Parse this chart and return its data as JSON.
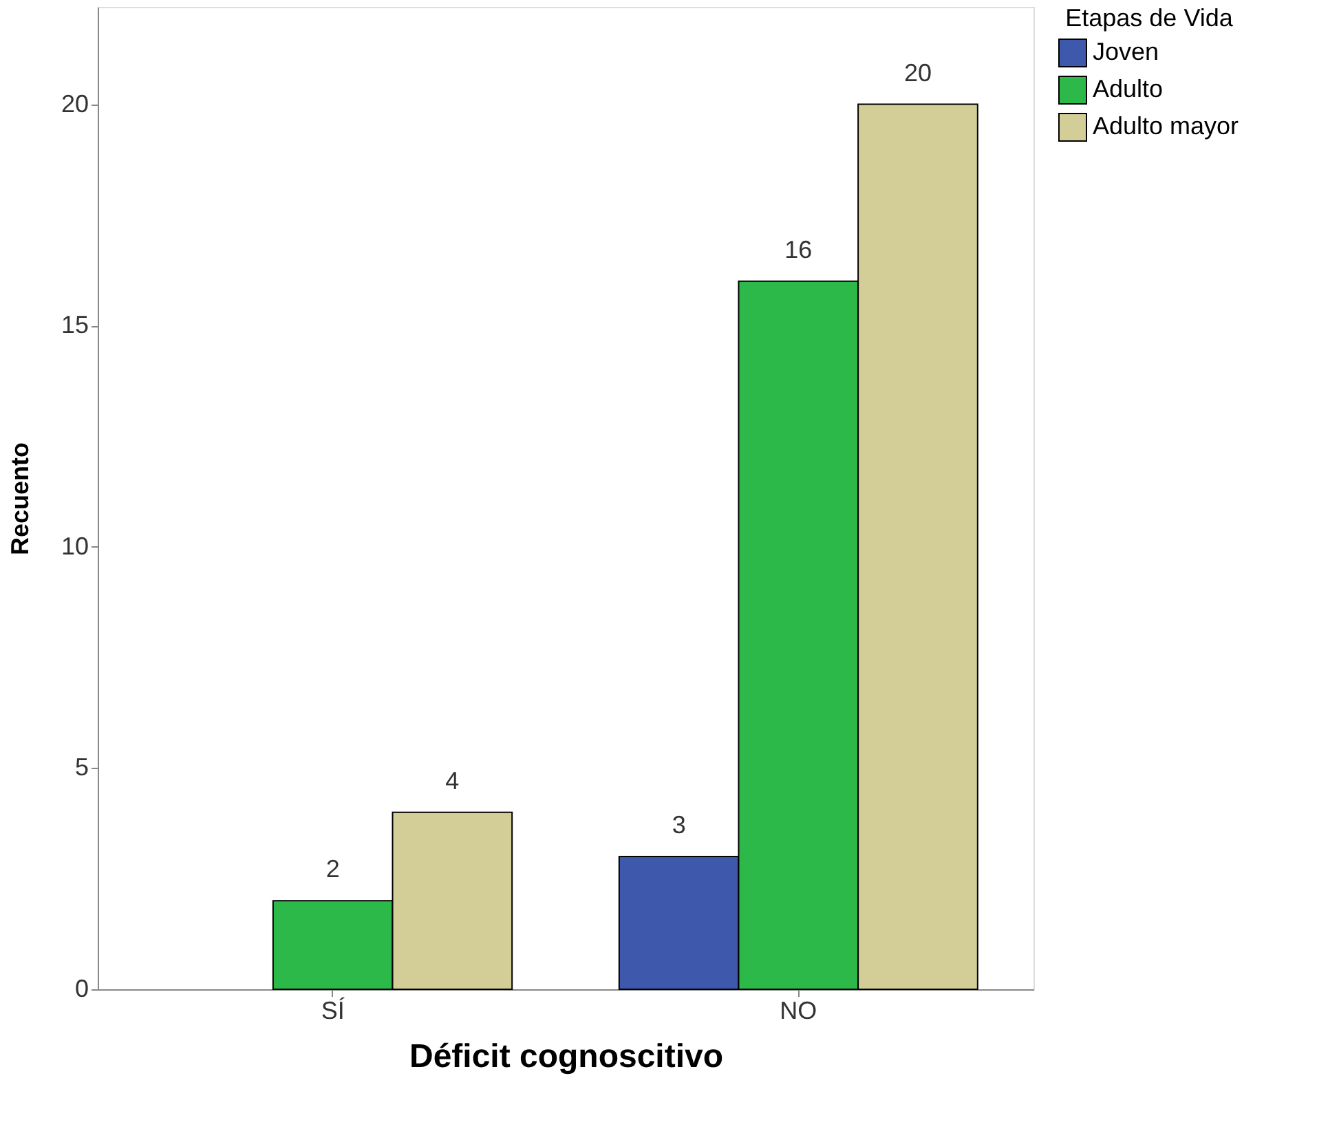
{
  "chart_data": {
    "type": "bar",
    "xlabel": "Déficit cognoscitivo",
    "ylabel": "Recuento",
    "legend_title": "Etapas de Vida",
    "categories": [
      "SÍ",
      "NO"
    ],
    "series": [
      {
        "name": "Joven",
        "color": "#3e58ac",
        "values": [
          null,
          3
        ]
      },
      {
        "name": "Adulto",
        "color": "#2db84a",
        "values": [
          2,
          16
        ]
      },
      {
        "name": "Adulto mayor",
        "color": "#d3ce97",
        "values": [
          4,
          20
        ]
      }
    ],
    "ylim": [
      0,
      22.2
    ],
    "yticks": [
      0,
      5,
      10,
      15,
      20
    ],
    "grid": false,
    "legend": "top right",
    "data_labels": true
  }
}
